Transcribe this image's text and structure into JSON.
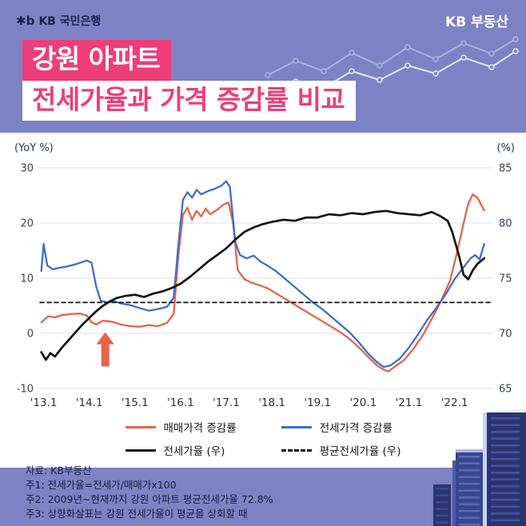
{
  "header": {
    "logo_mark": "✱b",
    "logo_text": "KB 국민은행",
    "brand": "KB 부동산"
  },
  "title": {
    "line1": "강원 아파트",
    "line2": "전세가율과 가격 증감률 비교"
  },
  "colors": {
    "background": "#7d82c5",
    "accent_pink": "#ee3d78",
    "sale_line": "#e8624a",
    "jeonse_line": "#3e6ec9",
    "ratio_line": "#131313",
    "grid": "#dcdfec"
  },
  "chart_data": {
    "type": "line",
    "title": "강원 아파트 전세가율과 가격 증감률 비교",
    "left_axis": {
      "label": "(YoY %)",
      "min": -10,
      "max": 30,
      "ticks": [
        30,
        20,
        10,
        0,
        -10
      ]
    },
    "right_axis": {
      "label": "(%)",
      "min": 65,
      "max": 85,
      "ticks": [
        85,
        80,
        75,
        70,
        65
      ]
    },
    "x_axis": {
      "min": 2012.92,
      "max": 2022.83,
      "tick_values": [
        2013,
        2014,
        2015,
        2016,
        2017,
        2018,
        2019,
        2020,
        2021,
        2022
      ],
      "tick_labels": [
        "'13.1",
        "'14.1",
        "'15.1",
        "'16.1",
        "'17.1",
        "'18.1",
        "'19.1",
        "'20.1",
        "'21.1",
        "'22.1"
      ]
    },
    "grid": "horizontal",
    "legend_position": "bottom",
    "series": [
      {
        "name": "매매가격 증감률",
        "color": "#e8624a",
        "axis": "left",
        "dash": false,
        "width": 2.3,
        "points": [
          [
            2012.95,
            2.0
          ],
          [
            2013.1,
            3.1
          ],
          [
            2013.25,
            2.9
          ],
          [
            2013.4,
            3.3
          ],
          [
            2013.6,
            3.5
          ],
          [
            2013.8,
            3.6
          ],
          [
            2013.95,
            3.2
          ],
          [
            2014.05,
            2.0
          ],
          [
            2014.15,
            1.6
          ],
          [
            2014.3,
            2.3
          ],
          [
            2014.5,
            2.1
          ],
          [
            2014.7,
            1.6
          ],
          [
            2014.9,
            1.3
          ],
          [
            2015.1,
            1.2
          ],
          [
            2015.3,
            1.5
          ],
          [
            2015.5,
            1.3
          ],
          [
            2015.7,
            1.9
          ],
          [
            2015.85,
            3.5
          ],
          [
            2015.95,
            14.0
          ],
          [
            2016.05,
            21.5
          ],
          [
            2016.15,
            22.8
          ],
          [
            2016.25,
            20.6
          ],
          [
            2016.35,
            22.2
          ],
          [
            2016.45,
            21.2
          ],
          [
            2016.55,
            22.6
          ],
          [
            2016.65,
            21.6
          ],
          [
            2016.8,
            22.4
          ],
          [
            2016.95,
            23.4
          ],
          [
            2017.05,
            23.7
          ],
          [
            2017.15,
            20.0
          ],
          [
            2017.25,
            11.5
          ],
          [
            2017.4,
            9.8
          ],
          [
            2017.55,
            9.2
          ],
          [
            2017.7,
            8.8
          ],
          [
            2017.9,
            8.2
          ],
          [
            2018.1,
            7.2
          ],
          [
            2018.3,
            6.2
          ],
          [
            2018.5,
            5.2
          ],
          [
            2018.7,
            4.2
          ],
          [
            2018.9,
            3.2
          ],
          [
            2019.1,
            2.2
          ],
          [
            2019.3,
            1.2
          ],
          [
            2019.5,
            0.2
          ],
          [
            2019.7,
            -1.0
          ],
          [
            2019.9,
            -2.5
          ],
          [
            2020.1,
            -4.2
          ],
          [
            2020.3,
            -5.8
          ],
          [
            2020.45,
            -6.6
          ],
          [
            2020.55,
            -6.9
          ],
          [
            2020.7,
            -6.0
          ],
          [
            2020.9,
            -4.8
          ],
          [
            2021.1,
            -2.8
          ],
          [
            2021.3,
            -0.4
          ],
          [
            2021.5,
            2.6
          ],
          [
            2021.7,
            5.8
          ],
          [
            2021.9,
            9.5
          ],
          [
            2022.05,
            14.5
          ],
          [
            2022.2,
            20.0
          ],
          [
            2022.3,
            23.5
          ],
          [
            2022.4,
            25.2
          ],
          [
            2022.5,
            24.6
          ],
          [
            2022.65,
            22.3
          ]
        ]
      },
      {
        "name": "전세가격 증감률",
        "color": "#3e6ec9",
        "axis": "left",
        "dash": false,
        "width": 2.3,
        "points": [
          [
            2012.95,
            11.3
          ],
          [
            2013.0,
            16.2
          ],
          [
            2013.08,
            12.3
          ],
          [
            2013.2,
            11.6
          ],
          [
            2013.35,
            11.9
          ],
          [
            2013.5,
            12.1
          ],
          [
            2013.65,
            12.4
          ],
          [
            2013.8,
            12.8
          ],
          [
            2013.95,
            13.2
          ],
          [
            2014.05,
            12.8
          ],
          [
            2014.15,
            8.5
          ],
          [
            2014.25,
            5.9
          ],
          [
            2014.4,
            5.6
          ],
          [
            2014.55,
            5.8
          ],
          [
            2014.7,
            5.4
          ],
          [
            2014.9,
            5.1
          ],
          [
            2015.1,
            4.6
          ],
          [
            2015.3,
            4.1
          ],
          [
            2015.5,
            4.4
          ],
          [
            2015.7,
            4.8
          ],
          [
            2015.85,
            6.5
          ],
          [
            2015.95,
            16.0
          ],
          [
            2016.05,
            24.2
          ],
          [
            2016.15,
            25.6
          ],
          [
            2016.25,
            24.6
          ],
          [
            2016.35,
            26.0
          ],
          [
            2016.45,
            25.2
          ],
          [
            2016.6,
            25.8
          ],
          [
            2016.75,
            26.2
          ],
          [
            2016.9,
            26.8
          ],
          [
            2017.0,
            27.6
          ],
          [
            2017.08,
            26.5
          ],
          [
            2017.2,
            16.5
          ],
          [
            2017.3,
            14.2
          ],
          [
            2017.45,
            13.6
          ],
          [
            2017.6,
            14.1
          ],
          [
            2017.75,
            13.0
          ],
          [
            2017.9,
            12.3
          ],
          [
            2018.1,
            11.2
          ],
          [
            2018.3,
            9.8
          ],
          [
            2018.5,
            8.4
          ],
          [
            2018.7,
            7.0
          ],
          [
            2018.9,
            5.6
          ],
          [
            2019.1,
            4.4
          ],
          [
            2019.3,
            3.0
          ],
          [
            2019.5,
            1.6
          ],
          [
            2019.7,
            0.2
          ],
          [
            2019.9,
            -1.6
          ],
          [
            2020.1,
            -3.6
          ],
          [
            2020.3,
            -5.2
          ],
          [
            2020.45,
            -6.1
          ],
          [
            2020.6,
            -5.8
          ],
          [
            2020.8,
            -4.6
          ],
          [
            2021.0,
            -2.6
          ],
          [
            2021.2,
            -0.2
          ],
          [
            2021.4,
            2.4
          ],
          [
            2021.6,
            4.6
          ],
          [
            2021.8,
            7.0
          ],
          [
            2022.0,
            9.8
          ],
          [
            2022.2,
            12.0
          ],
          [
            2022.35,
            13.6
          ],
          [
            2022.45,
            14.2
          ],
          [
            2022.55,
            13.4
          ],
          [
            2022.65,
            16.2
          ]
        ]
      },
      {
        "name": "전세가율 (우)",
        "color": "#131313",
        "axis": "right",
        "dash": false,
        "width": 2.7,
        "points": [
          [
            2012.95,
            68.3
          ],
          [
            2013.05,
            67.6
          ],
          [
            2013.15,
            68.2
          ],
          [
            2013.25,
            67.9
          ],
          [
            2013.4,
            68.7
          ],
          [
            2013.55,
            69.4
          ],
          [
            2013.7,
            70.1
          ],
          [
            2013.85,
            70.8
          ],
          [
            2014.0,
            71.4
          ],
          [
            2014.15,
            72.0
          ],
          [
            2014.3,
            72.5
          ],
          [
            2014.45,
            72.9
          ],
          [
            2014.6,
            73.2
          ],
          [
            2014.8,
            73.4
          ],
          [
            2015.0,
            73.5
          ],
          [
            2015.2,
            73.3
          ],
          [
            2015.4,
            73.6
          ],
          [
            2015.6,
            73.8
          ],
          [
            2015.8,
            74.1
          ],
          [
            2016.0,
            74.5
          ],
          [
            2016.2,
            75.1
          ],
          [
            2016.4,
            75.8
          ],
          [
            2016.6,
            76.5
          ],
          [
            2016.8,
            77.1
          ],
          [
            2017.0,
            77.7
          ],
          [
            2017.2,
            78.5
          ],
          [
            2017.4,
            79.2
          ],
          [
            2017.6,
            79.6
          ],
          [
            2017.8,
            79.9
          ],
          [
            2018.0,
            80.1
          ],
          [
            2018.25,
            80.3
          ],
          [
            2018.5,
            80.2
          ],
          [
            2018.75,
            80.5
          ],
          [
            2019.0,
            80.5
          ],
          [
            2019.25,
            80.8
          ],
          [
            2019.5,
            80.7
          ],
          [
            2019.75,
            80.9
          ],
          [
            2020.0,
            80.8
          ],
          [
            2020.25,
            81.0
          ],
          [
            2020.5,
            81.1
          ],
          [
            2020.75,
            80.9
          ],
          [
            2021.0,
            80.8
          ],
          [
            2021.25,
            80.7
          ],
          [
            2021.5,
            81.0
          ],
          [
            2021.7,
            80.6
          ],
          [
            2021.85,
            80.2
          ],
          [
            2021.95,
            79.2
          ],
          [
            2022.1,
            77.0
          ],
          [
            2022.2,
            75.3
          ],
          [
            2022.3,
            74.9
          ],
          [
            2022.4,
            75.7
          ],
          [
            2022.5,
            76.3
          ],
          [
            2022.65,
            76.8
          ]
        ]
      },
      {
        "name": "평균전세가율 (우)",
        "color": "#131313",
        "axis": "right",
        "dash": true,
        "width": 1.8,
        "points": [
          [
            2012.92,
            72.8
          ],
          [
            2022.83,
            72.8
          ]
        ]
      }
    ],
    "average_jeonse_ratio": 72.8,
    "annotation": {
      "type": "up-arrow",
      "x": 2014.35,
      "y_tip": 0.2,
      "y_base": -6.0,
      "color": "#e8624a"
    }
  },
  "footer": {
    "source": "자료: KB부동산",
    "notes": [
      "주1: 전세가율=전세가/매매가x100",
      "주2: 2009년~현재까지 강원 아파트 평균전세가율 72.8%",
      "주3: 상향화살표는 강원 전세가율이 평균을 상회할 때"
    ]
  }
}
